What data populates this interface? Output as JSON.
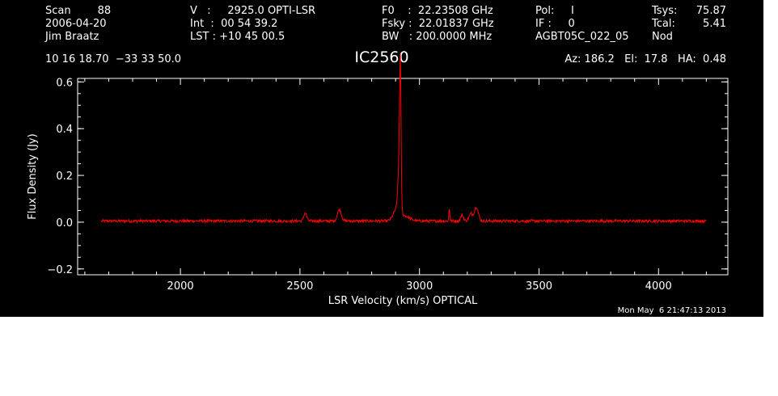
{
  "header": {
    "col1": [
      "Scan        88",
      "2006-04-20",
      "Jim Braatz"
    ],
    "col2": [
      "V   :     2925.0 OPTI-LSR",
      "Int  :  00 54 39.2",
      "LST : +10 45 00.5"
    ],
    "col3": [
      "F0    :  22.23508 GHz",
      "Fsky :  22.01837 GHz",
      "BW   : 200.0000 MHz"
    ],
    "col4": [
      "Pol:     I",
      "IF :     0",
      "AGBT05C_022_05"
    ],
    "col5": [
      "Tsys:",
      "Tcal:",
      "Nod"
    ],
    "col6": [
      "75.87",
      "5.41",
      ""
    ],
    "coords": "10 16 18.70  −33 33 50.0",
    "azelha": "Az: 186.2   El:  17.8   HA:  0.48"
  },
  "timestamp": "Mon May  6 21:47:13 2013",
  "chart_data": {
    "type": "line",
    "title": "IC2560",
    "xlabel": "LSR Velocity (km/s) OPTICAL",
    "ylabel": "Flux Density (Jy)",
    "xlim": [
      1570,
      4290
    ],
    "ylim": [
      -0.225,
      0.615
    ],
    "xticks": [
      2000,
      2500,
      3000,
      3500,
      4000
    ],
    "yticks": [
      -0.2,
      0.0,
      0.2,
      0.4,
      0.6
    ],
    "ytick_labels": [
      "−0.2",
      "0.0",
      "0.2",
      "0.4",
      "0.6"
    ],
    "colors": {
      "background": "#000000",
      "axes": "#ffffff",
      "series": "#ff0000"
    },
    "series": [
      {
        "x_range": [
          1670,
          4200
        ],
        "baseline": 0.005,
        "noise": 0.006,
        "features": [
          {
            "x": 2522,
            "height": 0.035,
            "width": 6
          },
          {
            "x": 2665,
            "height": 0.05,
            "width": 8
          },
          {
            "x": 2905,
            "height": 0.05,
            "width": 14
          },
          {
            "x": 2915,
            "height": 0.2,
            "width": 5
          },
          {
            "x": 2920,
            "height": 0.55,
            "width": 3
          },
          {
            "x": 2940,
            "height": 0.02,
            "width": 20
          },
          {
            "x": 3125,
            "height": 0.055,
            "width": 2
          },
          {
            "x": 3178,
            "height": 0.025,
            "width": 6
          },
          {
            "x": 3215,
            "height": 0.03,
            "width": 8
          },
          {
            "x": 3238,
            "height": 0.06,
            "width": 8
          }
        ]
      }
    ]
  }
}
